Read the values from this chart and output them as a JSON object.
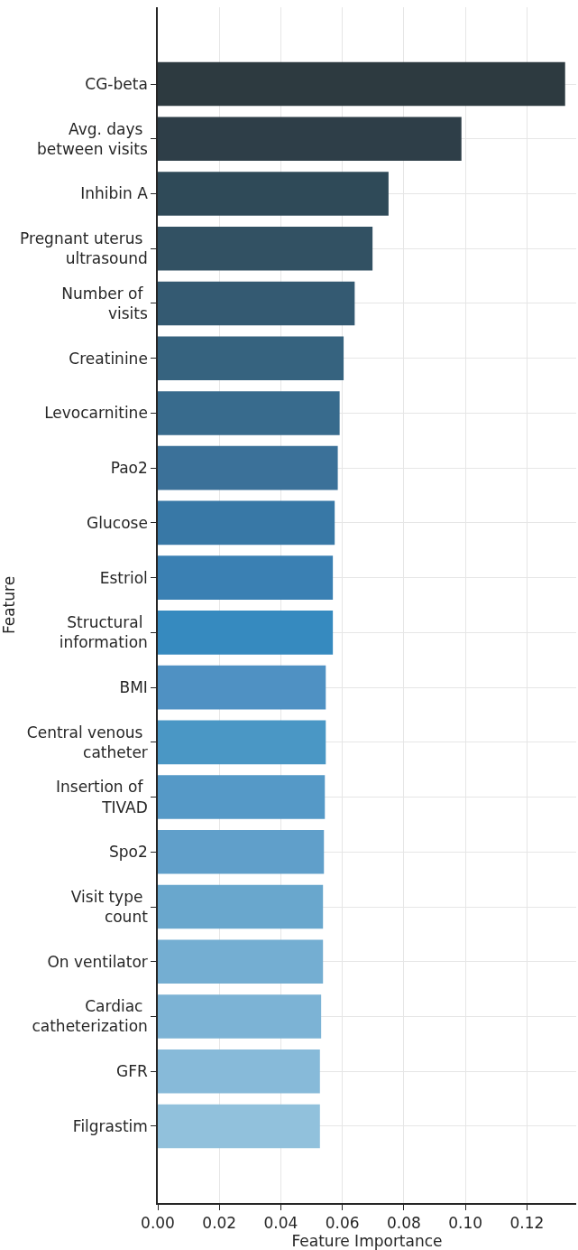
{
  "chart_data": {
    "type": "bar",
    "orientation": "horizontal",
    "xlabel": "Feature Importance",
    "ylabel": "Feature",
    "categories": [
      "CG-beta",
      "Avg. days\nbetween visits",
      "Inhibin A",
      "Pregnant uterus\nultrasound",
      "Number of\nvisits",
      "Creatinine",
      "Levocarnitine",
      "Pao2",
      "Glucose",
      "Estriol",
      "Structural\ninformation",
      "BMI",
      "Central venous\ncatheter",
      "Insertion of\nTIVAD",
      "Spo2",
      "Visit type\ncount",
      "On ventilator",
      "Cardiac\ncatheterization",
      "GFR",
      "Filgrastim"
    ],
    "values": [
      0.1324,
      0.0987,
      0.075,
      0.0698,
      0.064,
      0.0604,
      0.0591,
      0.0585,
      0.0575,
      0.0569,
      0.0569,
      0.0546,
      0.0546,
      0.0543,
      0.054,
      0.0537,
      0.0537,
      0.0531,
      0.0527,
      0.0527
    ],
    "colors": [
      "#2d3a40",
      "#2e3e48",
      "#2f4a58",
      "#325163",
      "#345a72",
      "#36637f",
      "#386b8d",
      "#3b7199",
      "#3878a6",
      "#3a80b3",
      "#368abf",
      "#4f91c3",
      "#4a97c5",
      "#5599c7",
      "#609fca",
      "#69a7cd",
      "#74aed2",
      "#7cb3d5",
      "#87bad9",
      "#91c1dc"
    ],
    "xlim": [
      0,
      0.136
    ],
    "xticks": [
      {
        "value": 0,
        "label": "0.00"
      },
      {
        "value": 0.02,
        "label": "0.02"
      },
      {
        "value": 0.04,
        "label": "0.04"
      },
      {
        "value": 0.06,
        "label": "0.06"
      },
      {
        "value": 0.08,
        "label": "0.08"
      },
      {
        "value": 0.1,
        "label": "0.10"
      },
      {
        "value": 0.12,
        "label": "0.12"
      }
    ],
    "grid": true
  }
}
